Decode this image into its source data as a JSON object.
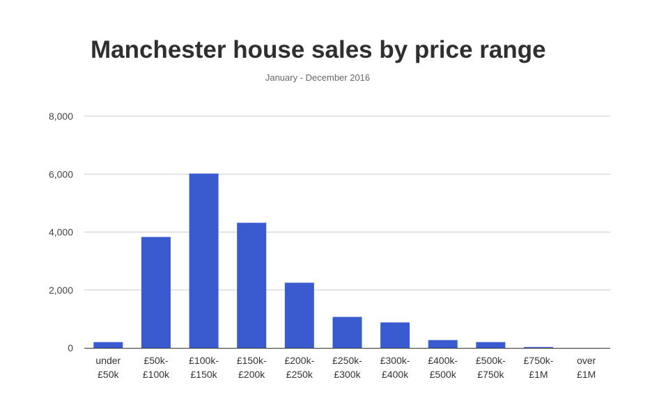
{
  "chart_data": {
    "type": "bar",
    "title": "Manchester house sales by price range",
    "subtitle": "January - December 2016",
    "xlabel": "",
    "ylabel": "",
    "categories": [
      [
        "under",
        "£50k"
      ],
      [
        "£50k-",
        "£100k"
      ],
      [
        "£100k-",
        "£150k"
      ],
      [
        "£150k-",
        "£200k"
      ],
      [
        "£200k-",
        "£250k"
      ],
      [
        "£250k-",
        "£300k"
      ],
      [
        "£300k-",
        "£400k"
      ],
      [
        "£400k-",
        "£500k"
      ],
      [
        "£500k-",
        "£750k"
      ],
      [
        "£750k-",
        "£1M"
      ],
      [
        "over",
        "£1M"
      ]
    ],
    "values": [
      200,
      3830,
      6020,
      4320,
      2250,
      1070,
      880,
      270,
      200,
      30,
      0
    ],
    "ylim": [
      0,
      8000
    ],
    "yticks": [
      0,
      2000,
      4000,
      6000,
      8000
    ],
    "ytick_labels": [
      "0",
      "2,000",
      "4,000",
      "6,000",
      "8,000"
    ],
    "grid": true,
    "legend": "none",
    "bar_color": "#3a5bcf",
    "grid_color": "#cccccc",
    "axis_color": "#333333"
  }
}
